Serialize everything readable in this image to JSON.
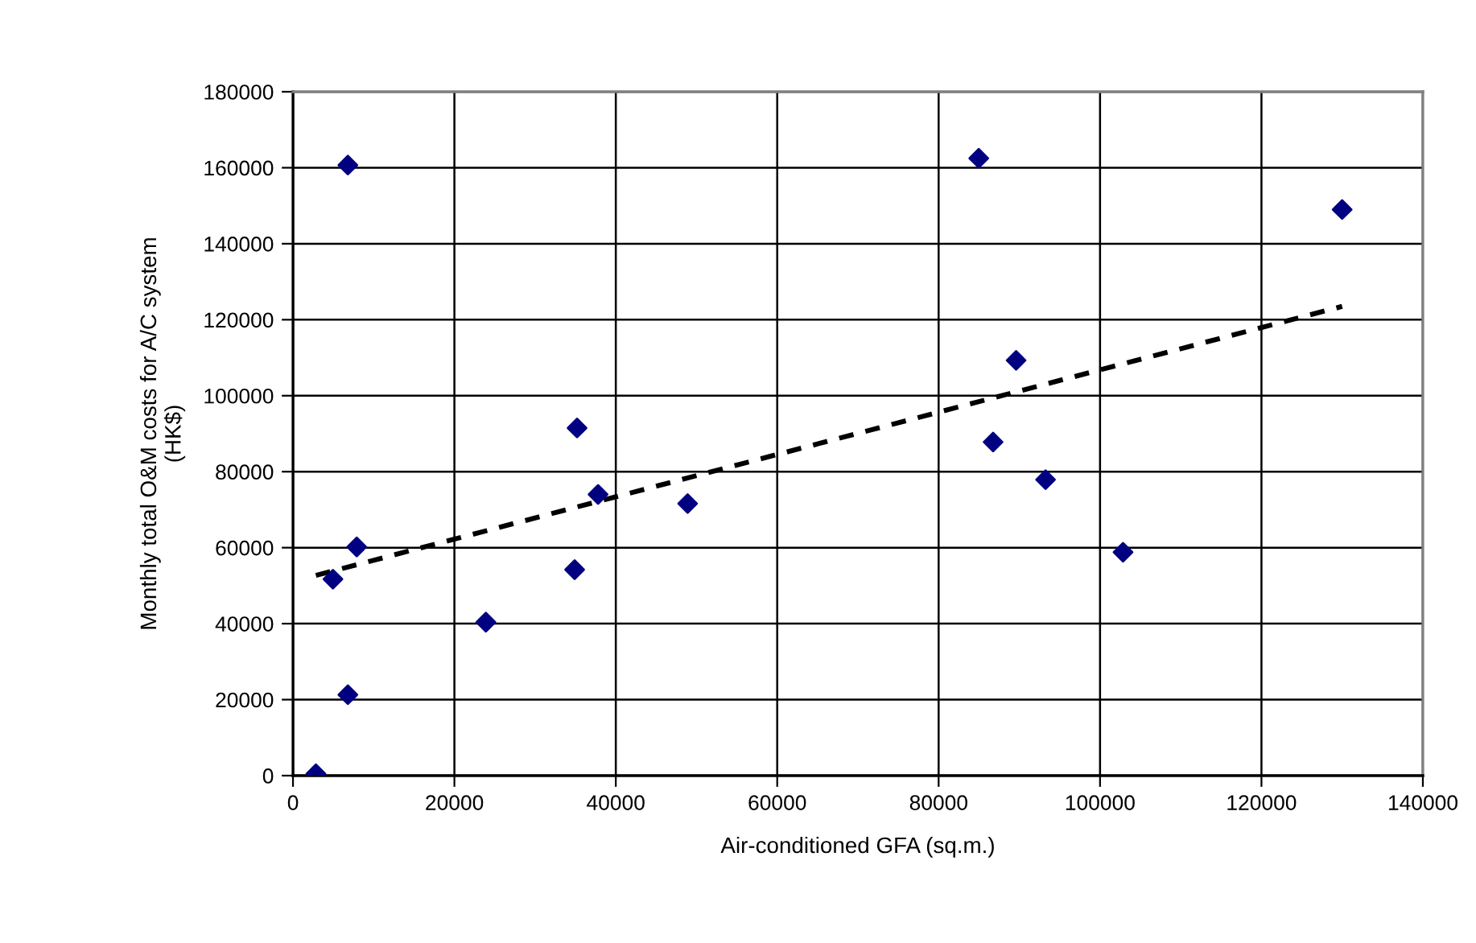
{
  "chart_data": {
    "type": "scatter",
    "xlabel": "Air-conditioned GFA (sq.m.)",
    "ylabel": "Monthly total O&M costs for A/C system\n(HK$)",
    "x": [
      2840,
      4950,
      6800,
      6800,
      7900,
      23900,
      34900,
      35200,
      37800,
      48900,
      84970,
      86750,
      89600,
      93250,
      102850,
      130000
    ],
    "series": [
      {
        "color": "#000080",
        "marker": "diamond",
        "values": [
          500,
          51700,
          160700,
          21300,
          60200,
          40400,
          54200,
          91500,
          74000,
          71600,
          162500,
          87800,
          109300,
          77900,
          58800,
          149000
        ]
      },
      {
        "type": "line",
        "color": "#000000",
        "line_style": "dashed",
        "x": [
          2840,
          130000
        ],
        "values": [
          52700,
          123500
        ]
      }
    ],
    "xlim": [
      0,
      140000
    ],
    "ylim": [
      0,
      180000
    ],
    "xticks": [
      0,
      20000,
      40000,
      60000,
      80000,
      100000,
      120000,
      140000
    ],
    "yticks": [
      0,
      20000,
      40000,
      60000,
      80000,
      100000,
      120000,
      140000,
      160000,
      180000
    ],
    "grid": true
  }
}
